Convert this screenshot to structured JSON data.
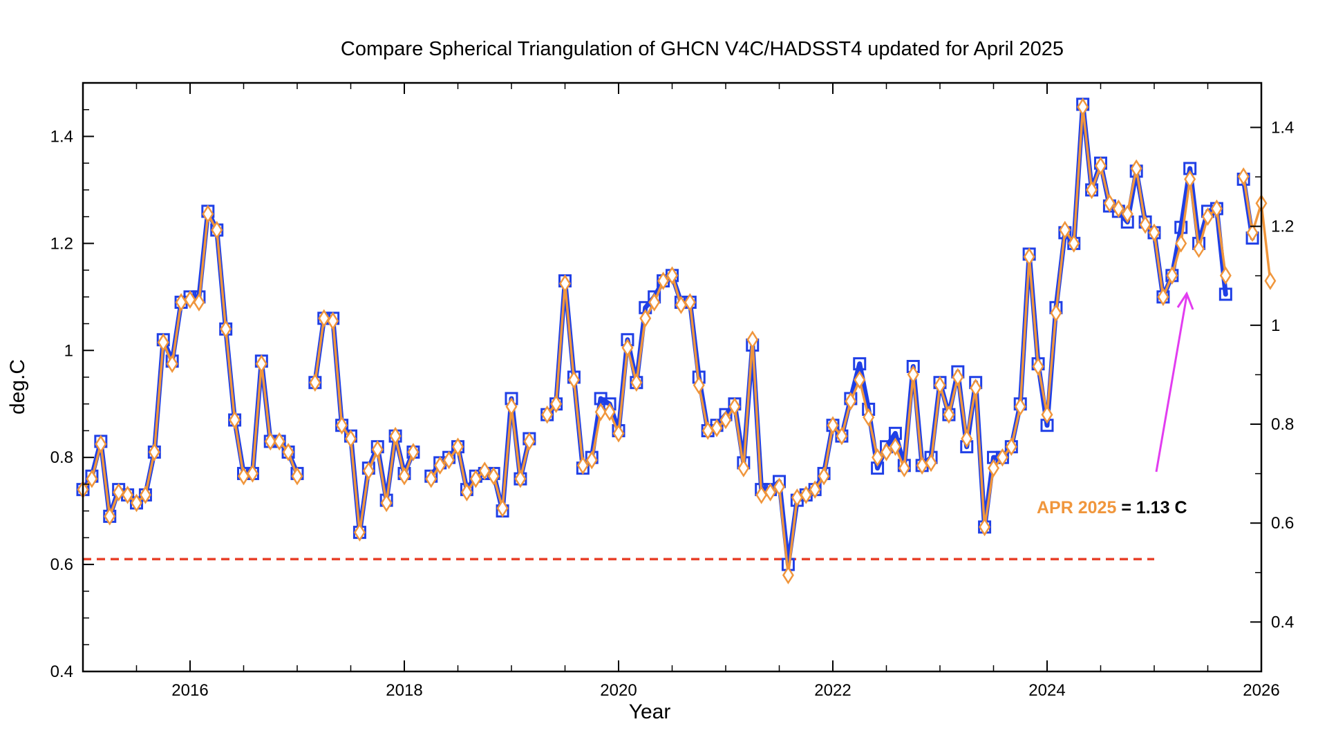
{
  "chart_data": {
    "type": "line",
    "title": "Compare Spherical Triangulation of GHCN V4C/HADSST4 updated for April 2025",
    "xlabel": "Year",
    "ylabel": "deg.C",
    "xlim": [
      2015,
      2026
    ],
    "ylim": [
      0.4,
      1.5
    ],
    "ylim_right": [
      0.3,
      1.49
    ],
    "x_ticks": [
      "2016",
      "2018",
      "2020",
      "2022",
      "2024",
      "2026"
    ],
    "y_ticks": [
      "0.4",
      "0.6",
      "0.8",
      "1",
      "1.2",
      "1.4"
    ],
    "y_ticks_right": [
      "0.4",
      "0.6",
      "0.8",
      "1",
      "1.2",
      "1.4"
    ],
    "reference_line": {
      "value": 0.61,
      "x_end": 2025.0,
      "style": "dashed",
      "color": "#e8412a"
    },
    "series": [
      {
        "name": "GHCN V4C/HADSST4 (blue)",
        "color": "#1f3fe6",
        "start": 2015.0,
        "step": 0.0833333,
        "values": [
          0.74,
          0.765,
          0.83,
          0.69,
          0.74,
          0.73,
          0.715,
          0.73,
          0.81,
          1.02,
          0.98,
          1.09,
          1.1,
          1.1,
          1.26,
          1.225,
          1.04,
          0.87,
          0.77,
          0.77,
          0.98,
          0.83,
          0.83,
          0.81,
          0.77,
          null,
          0.94,
          1.06,
          1.06,
          0.86,
          0.84,
          0.66,
          0.78,
          0.82,
          0.72,
          0.84,
          0.77,
          0.81,
          null,
          0.765,
          0.79,
          0.8,
          0.82,
          0.74,
          0.765,
          0.77,
          0.77,
          0.7,
          0.91,
          0.76,
          0.835,
          null,
          0.88,
          0.9,
          1.13,
          0.95,
          0.78,
          0.8,
          0.91,
          0.9,
          0.85,
          1.02,
          0.94,
          1.08,
          1.1,
          1.13,
          1.14,
          1.09,
          1.09,
          0.95,
          0.85,
          0.86,
          0.88,
          0.9,
          0.79,
          1.01,
          0.74,
          0.74,
          0.755,
          0.6,
          0.72,
          0.73,
          0.74,
          0.77,
          0.86,
          0.84,
          0.91,
          0.975,
          0.89,
          0.78,
          0.82,
          0.845,
          0.785,
          0.97,
          0.785,
          0.8,
          0.94,
          0.88,
          0.96,
          0.82,
          0.94,
          0.67,
          0.8,
          0.8,
          0.82,
          0.9,
          1.18,
          0.975,
          0.86,
          1.08,
          1.22,
          1.2,
          1.46,
          1.3,
          1.35,
          1.27,
          1.26,
          1.24,
          1.335,
          1.24,
          1.22,
          1.1,
          1.14,
          1.23,
          1.34,
          1.2,
          1.26,
          1.265,
          1.105,
          null,
          1.32,
          1.21
        ]
      },
      {
        "name": "Spherical Triangulation (orange)",
        "color": "#f0963c",
        "start": 2015.0,
        "step": 0.0833333,
        "values": [
          0.74,
          0.76,
          0.825,
          0.69,
          0.735,
          0.73,
          0.715,
          0.73,
          0.81,
          1.015,
          0.975,
          1.09,
          1.095,
          1.09,
          1.255,
          1.225,
          1.04,
          0.87,
          0.765,
          0.77,
          0.975,
          0.83,
          0.83,
          0.81,
          0.765,
          null,
          0.94,
          1.06,
          1.055,
          0.86,
          0.835,
          0.66,
          0.775,
          0.815,
          0.715,
          0.84,
          0.765,
          0.81,
          null,
          0.76,
          0.785,
          0.795,
          0.82,
          0.735,
          0.76,
          0.775,
          0.765,
          0.705,
          0.895,
          0.76,
          0.83,
          null,
          0.88,
          0.9,
          1.125,
          0.945,
          0.785,
          0.795,
          0.885,
          0.885,
          0.845,
          1.005,
          0.94,
          1.06,
          1.09,
          1.13,
          1.14,
          1.085,
          1.09,
          0.935,
          0.85,
          0.855,
          0.87,
          0.895,
          0.78,
          1.02,
          0.73,
          0.735,
          0.745,
          0.58,
          0.725,
          0.73,
          0.74,
          0.765,
          0.86,
          0.84,
          0.905,
          0.945,
          0.875,
          0.8,
          0.81,
          0.82,
          0.78,
          0.955,
          0.785,
          0.79,
          0.935,
          0.88,
          0.95,
          0.835,
          0.93,
          0.67,
          0.78,
          0.8,
          0.82,
          0.895,
          1.175,
          0.97,
          0.88,
          1.07,
          1.225,
          1.2,
          1.455,
          1.3,
          1.345,
          1.275,
          1.265,
          1.255,
          1.34,
          1.235,
          1.22,
          1.1,
          1.14,
          1.2,
          1.32,
          1.19,
          1.25,
          1.265,
          1.14,
          null,
          1.325,
          1.22,
          1.275,
          1.13
        ]
      }
    ],
    "annotation": {
      "label": "APR 2025",
      "value": " = 1.13 C",
      "label_color": "#f0963c",
      "arrow_color": "#e23cf0"
    }
  }
}
